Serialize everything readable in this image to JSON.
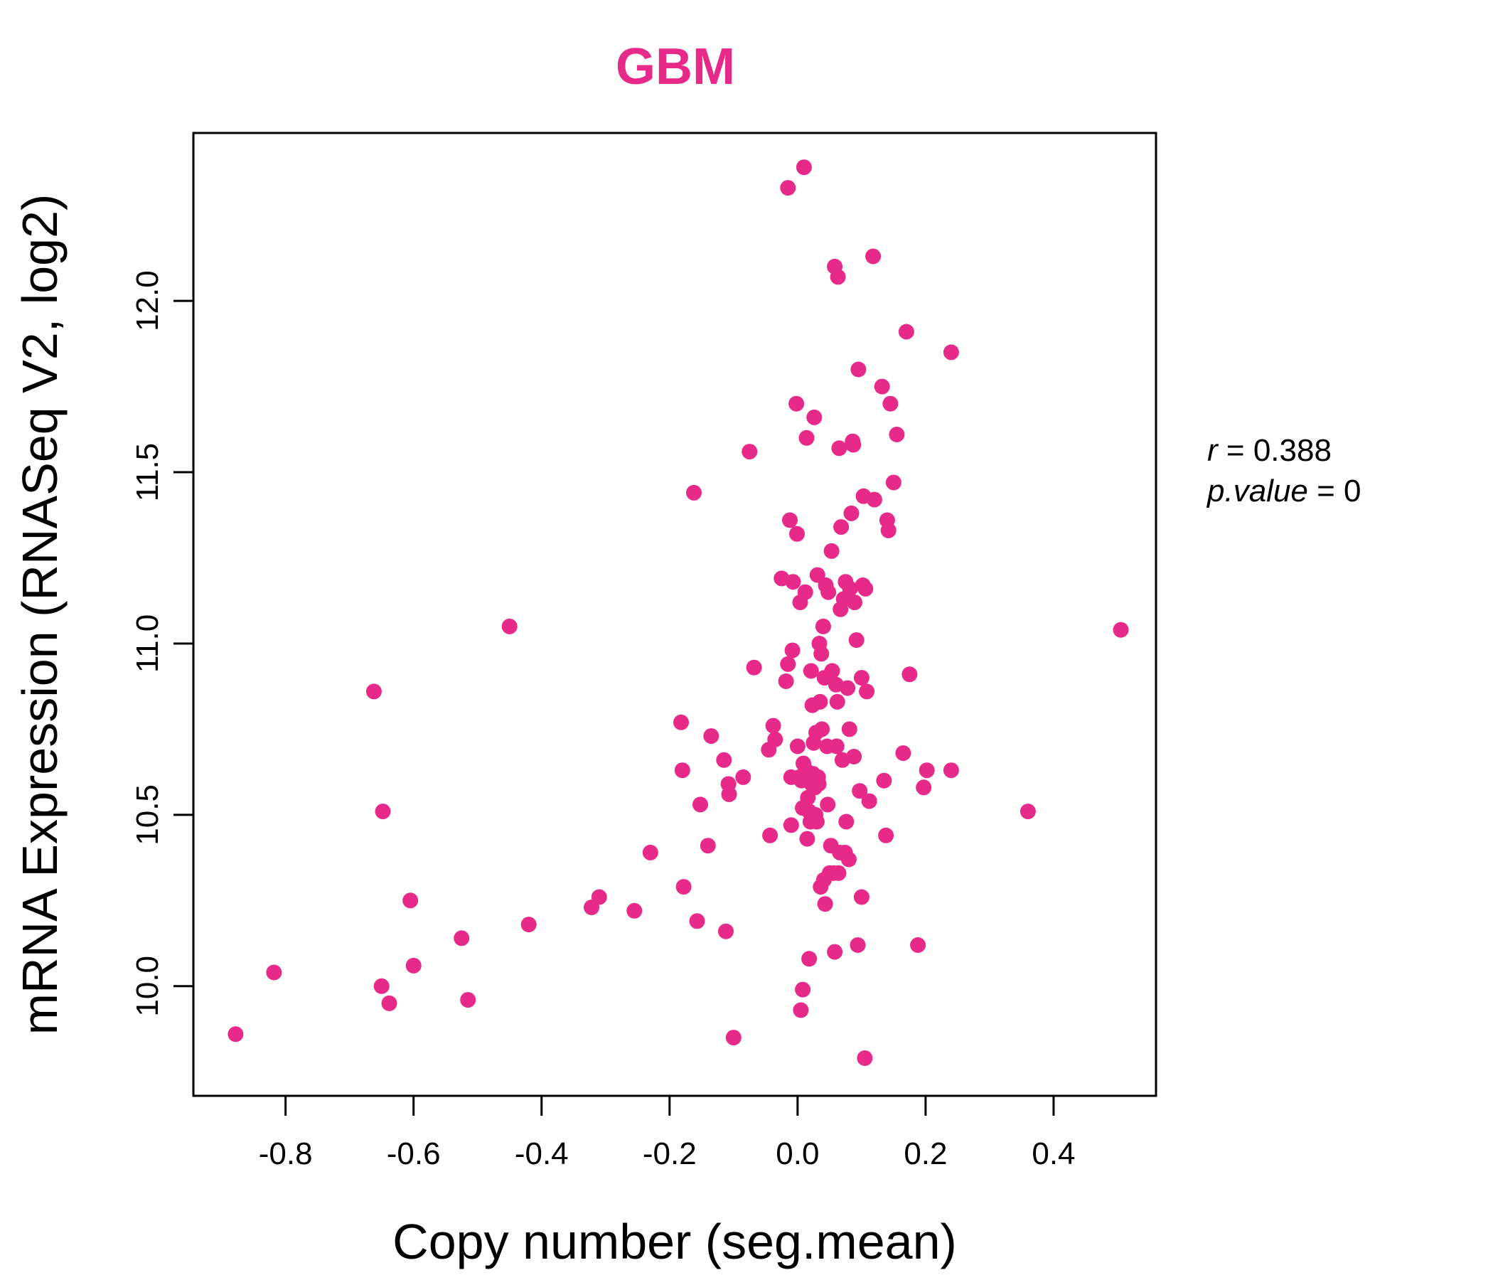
{
  "chart_data": {
    "type": "scatter",
    "title": "GBM",
    "xlabel": "Copy number (seg.mean)",
    "ylabel": "mRNA Expression (RNASeq V2, log2)",
    "xlim": [
      -0.944,
      0.56
    ],
    "ylim": [
      9.68,
      12.49
    ],
    "x_ticks": [
      -0.8,
      -0.6,
      -0.4,
      -0.2,
      0.0,
      0.2,
      0.4
    ],
    "x_tick_labels": [
      "-0.8",
      "-0.6",
      "-0.4",
      "-0.2",
      "0.0",
      "0.2",
      "0.4"
    ],
    "y_ticks": [
      10.0,
      10.5,
      11.0,
      11.5,
      12.0
    ],
    "y_tick_labels": [
      "10.0",
      "10.5",
      "11.0",
      "11.5",
      "12.0"
    ],
    "grid": false,
    "color": "#e7298a",
    "stats": {
      "r_label": "r",
      "r_value": "0.388",
      "p_label": "p.value",
      "p_value": "0"
    },
    "points": [
      [
        -0.878,
        9.86
      ],
      [
        -0.818,
        10.04
      ],
      [
        -0.662,
        10.86
      ],
      [
        -0.65,
        10.0
      ],
      [
        -0.648,
        10.51
      ],
      [
        -0.638,
        9.95
      ],
      [
        -0.605,
        10.25
      ],
      [
        -0.6,
        10.06
      ],
      [
        -0.525,
        10.14
      ],
      [
        -0.515,
        9.96
      ],
      [
        -0.45,
        11.05
      ],
      [
        -0.42,
        10.18
      ],
      [
        -0.322,
        10.23
      ],
      [
        -0.31,
        10.26
      ],
      [
        -0.255,
        10.22
      ],
      [
        -0.23,
        10.39
      ],
      [
        -0.182,
        10.77
      ],
      [
        -0.18,
        10.63
      ],
      [
        -0.178,
        10.29
      ],
      [
        -0.162,
        11.44
      ],
      [
        -0.157,
        10.19
      ],
      [
        -0.152,
        10.53
      ],
      [
        -0.14,
        10.41
      ],
      [
        -0.135,
        10.73
      ],
      [
        -0.115,
        10.66
      ],
      [
        -0.112,
        10.16
      ],
      [
        -0.108,
        10.59
      ],
      [
        -0.107,
        10.56
      ],
      [
        -0.1,
        9.85
      ],
      [
        -0.085,
        10.61
      ],
      [
        -0.075,
        11.56
      ],
      [
        -0.068,
        10.93
      ],
      [
        -0.045,
        10.69
      ],
      [
        -0.043,
        10.44
      ],
      [
        -0.038,
        10.76
      ],
      [
        -0.035,
        10.72
      ],
      [
        -0.025,
        11.19
      ],
      [
        -0.018,
        10.89
      ],
      [
        -0.015,
        12.33
      ],
      [
        -0.015,
        10.94
      ],
      [
        -0.012,
        11.36
      ],
      [
        -0.01,
        10.61
      ],
      [
        -0.01,
        10.47
      ],
      [
        -0.008,
        10.98
      ],
      [
        -0.007,
        11.18
      ],
      [
        -0.002,
        11.7
      ],
      [
        -0.001,
        11.32
      ],
      [
        0.0,
        10.7
      ],
      [
        0.003,
        10.61
      ],
      [
        0.004,
        11.12
      ],
      [
        0.005,
        9.93
      ],
      [
        0.006,
        10.6
      ],
      [
        0.008,
        10.52
      ],
      [
        0.008,
        9.99
      ],
      [
        0.009,
        10.65
      ],
      [
        0.01,
        12.39
      ],
      [
        0.012,
        11.15
      ],
      [
        0.013,
        10.63
      ],
      [
        0.014,
        11.6
      ],
      [
        0.015,
        10.43
      ],
      [
        0.016,
        10.55
      ],
      [
        0.018,
        10.08
      ],
      [
        0.018,
        10.51
      ],
      [
        0.02,
        10.48
      ],
      [
        0.021,
        10.92
      ],
      [
        0.022,
        10.59
      ],
      [
        0.023,
        10.82
      ],
      [
        0.024,
        10.62
      ],
      [
        0.025,
        10.71
      ],
      [
        0.026,
        11.66
      ],
      [
        0.027,
        10.58
      ],
      [
        0.028,
        10.5
      ],
      [
        0.029,
        10.74
      ],
      [
        0.03,
        10.48
      ],
      [
        0.031,
        11.2
      ],
      [
        0.032,
        10.61
      ],
      [
        0.033,
        10.59
      ],
      [
        0.034,
        11.0
      ],
      [
        0.035,
        10.83
      ],
      [
        0.036,
        10.29
      ],
      [
        0.037,
        10.97
      ],
      [
        0.038,
        10.75
      ],
      [
        0.04,
        11.05
      ],
      [
        0.041,
        10.31
      ],
      [
        0.042,
        10.9
      ],
      [
        0.043,
        10.24
      ],
      [
        0.044,
        11.17
      ],
      [
        0.046,
        10.7
      ],
      [
        0.047,
        10.53
      ],
      [
        0.048,
        11.15
      ],
      [
        0.05,
        10.33
      ],
      [
        0.052,
        10.41
      ],
      [
        0.053,
        11.27
      ],
      [
        0.054,
        10.92
      ],
      [
        0.056,
        10.33
      ],
      [
        0.058,
        10.1
      ],
      [
        0.058,
        12.1
      ],
      [
        0.06,
        10.88
      ],
      [
        0.061,
        10.7
      ],
      [
        0.062,
        10.83
      ],
      [
        0.063,
        12.07
      ],
      [
        0.064,
        10.33
      ],
      [
        0.065,
        11.57
      ],
      [
        0.066,
        10.39
      ],
      [
        0.067,
        11.1
      ],
      [
        0.068,
        11.34
      ],
      [
        0.07,
        10.66
      ],
      [
        0.072,
        11.13
      ],
      [
        0.074,
        10.39
      ],
      [
        0.075,
        11.18
      ],
      [
        0.076,
        10.48
      ],
      [
        0.078,
        10.87
      ],
      [
        0.08,
        10.37
      ],
      [
        0.081,
        10.75
      ],
      [
        0.082,
        11.16
      ],
      [
        0.084,
        11.38
      ],
      [
        0.086,
        11.59
      ],
      [
        0.087,
        11.58
      ],
      [
        0.088,
        10.67
      ],
      [
        0.089,
        11.12
      ],
      [
        0.092,
        11.01
      ],
      [
        0.094,
        10.12
      ],
      [
        0.095,
        11.8
      ],
      [
        0.097,
        10.57
      ],
      [
        0.1,
        10.26
      ],
      [
        0.1,
        10.9
      ],
      [
        0.102,
        11.17
      ],
      [
        0.103,
        11.43
      ],
      [
        0.105,
        9.79
      ],
      [
        0.106,
        11.16
      ],
      [
        0.108,
        10.86
      ],
      [
        0.112,
        10.54
      ],
      [
        0.118,
        12.13
      ],
      [
        0.12,
        11.42
      ],
      [
        0.132,
        11.75
      ],
      [
        0.135,
        10.6
      ],
      [
        0.138,
        10.44
      ],
      [
        0.14,
        11.36
      ],
      [
        0.142,
        11.33
      ],
      [
        0.145,
        11.7
      ],
      [
        0.15,
        11.47
      ],
      [
        0.155,
        11.61
      ],
      [
        0.165,
        10.68
      ],
      [
        0.17,
        11.91
      ],
      [
        0.175,
        10.91
      ],
      [
        0.188,
        10.12
      ],
      [
        0.197,
        10.58
      ],
      [
        0.202,
        10.63
      ],
      [
        0.24,
        10.63
      ],
      [
        0.24,
        11.85
      ],
      [
        0.36,
        10.51
      ],
      [
        0.505,
        11.04
      ]
    ]
  }
}
